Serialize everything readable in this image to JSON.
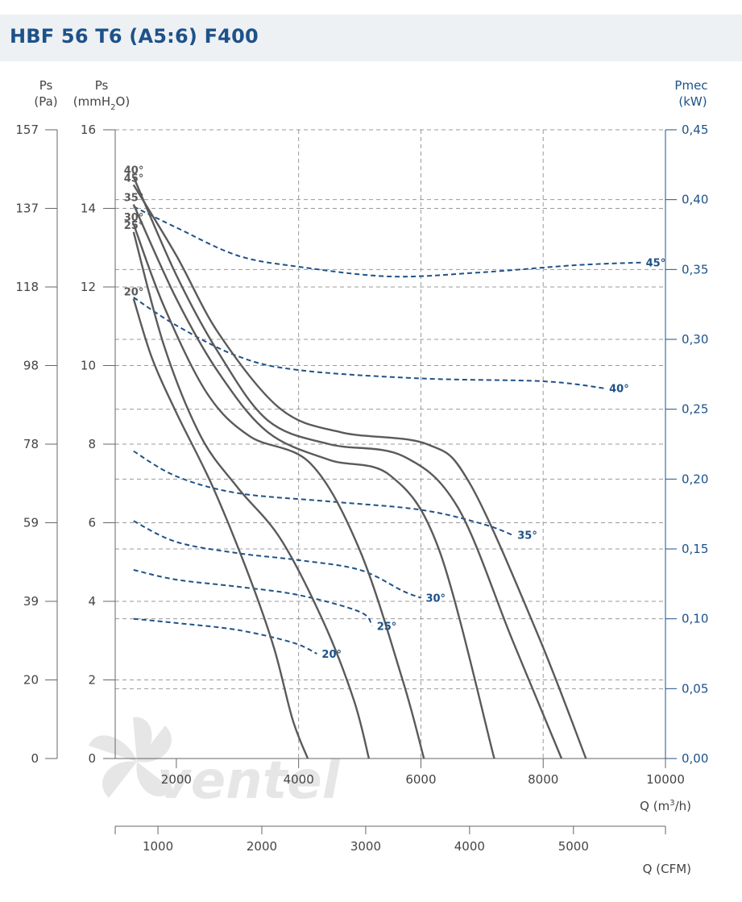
{
  "header": {
    "title": "HBF 56 T6 (A5:6) F400"
  },
  "watermark": {
    "text": "ventel"
  },
  "chart_data": {
    "type": "line",
    "title": "HBF 56 T6 (A5:6) F400",
    "axes": {
      "left_pa": {
        "label": "Ps",
        "unit": "(Pa)",
        "ticks": [
          "157",
          "137",
          "118",
          "98",
          "78",
          "59",
          "39",
          "20",
          "0"
        ]
      },
      "left_mmh2o": {
        "label": "Ps",
        "unit": "(mmH2O)",
        "unit_parts": [
          "(mmH",
          "2",
          "O)"
        ],
        "ticks": [
          "16",
          "14",
          "12",
          "10",
          "8",
          "6",
          "4",
          "2",
          "0"
        ],
        "ylim": [
          0,
          16
        ]
      },
      "right_kw": {
        "label": "Pmec",
        "unit": "(kW)",
        "ticks": [
          "0,45",
          "0,40",
          "0,35",
          "0,30",
          "0,25",
          "0,20",
          "0,15",
          "0,10",
          "0,05",
          "0,00"
        ],
        "ylim": [
          0,
          0.45
        ]
      },
      "bottom_m3h": {
        "label": "Q (m3/h)",
        "label_parts": [
          "Q (m",
          "3",
          "/h)"
        ],
        "ticks": [
          "2000",
          "4000",
          "6000",
          "8000",
          "10000"
        ],
        "xlim": [
          1000,
          10000
        ]
      },
      "bottom_cfm": {
        "label": "Q (CFM)",
        "ticks": [
          "1000",
          "2000",
          "3000",
          "4000",
          "5000"
        ]
      }
    },
    "grid": true,
    "pressure_series": [
      {
        "name": "20°",
        "points": [
          [
            1300,
            11.7
          ],
          [
            1600,
            10.2
          ],
          [
            2000,
            8.8
          ],
          [
            2600,
            6.9
          ],
          [
            3200,
            4.6
          ],
          [
            3600,
            2.8
          ],
          [
            3900,
            1.0
          ],
          [
            4150,
            0
          ]
        ]
      },
      {
        "name": "25°",
        "points": [
          [
            1300,
            13.4
          ],
          [
            1800,
            10.5
          ],
          [
            2400,
            8.2
          ],
          [
            3000,
            6.9
          ],
          [
            3700,
            5.6
          ],
          [
            4400,
            3.5
          ],
          [
            4900,
            1.5
          ],
          [
            5150,
            0
          ]
        ]
      },
      {
        "name": "30°",
        "points": [
          [
            1300,
            13.6
          ],
          [
            1800,
            11.5
          ],
          [
            2500,
            9.3
          ],
          [
            3200,
            8.2
          ],
          [
            4200,
            7.5
          ],
          [
            5000,
            5.3
          ],
          [
            5700,
            2.0
          ],
          [
            6050,
            0
          ]
        ]
      },
      {
        "name": "35°",
        "points": [
          [
            1300,
            14.1
          ],
          [
            2000,
            11.7
          ],
          [
            2700,
            9.8
          ],
          [
            3500,
            8.3
          ],
          [
            4500,
            7.6
          ],
          [
            5500,
            7.2
          ],
          [
            6300,
            5.3
          ],
          [
            7200,
            0
          ]
        ]
      },
      {
        "name": "40°",
        "points": [
          [
            1300,
            14.8
          ],
          [
            2000,
            12.3
          ],
          [
            2700,
            10.3
          ],
          [
            3500,
            8.6
          ],
          [
            4500,
            8.0
          ],
          [
            5700,
            7.7
          ],
          [
            6600,
            6.4
          ],
          [
            7500,
            3.0
          ],
          [
            8300,
            0
          ]
        ]
      },
      {
        "name": "45°",
        "points": [
          [
            1300,
            14.6
          ],
          [
            2000,
            12.8
          ],
          [
            2700,
            10.8
          ],
          [
            3700,
            8.9
          ],
          [
            4700,
            8.3
          ],
          [
            6100,
            8.0
          ],
          [
            6800,
            7.0
          ],
          [
            7900,
            3.2
          ],
          [
            8700,
            0
          ]
        ]
      }
    ],
    "power_series": [
      {
        "name": "20°",
        "points": [
          [
            1300,
            0.1
          ],
          [
            2000,
            0.097
          ],
          [
            3000,
            0.092
          ],
          [
            3900,
            0.083
          ],
          [
            4300,
            0.075
          ]
        ]
      },
      {
        "name": "25°",
        "points": [
          [
            1300,
            0.135
          ],
          [
            2000,
            0.128
          ],
          [
            3000,
            0.123
          ],
          [
            4000,
            0.117
          ],
          [
            5000,
            0.105
          ],
          [
            5200,
            0.095
          ]
        ]
      },
      {
        "name": "30°",
        "points": [
          [
            1300,
            0.17
          ],
          [
            2000,
            0.155
          ],
          [
            3000,
            0.147
          ],
          [
            4000,
            0.142
          ],
          [
            5000,
            0.135
          ],
          [
            5700,
            0.12
          ],
          [
            6000,
            0.115
          ]
        ]
      },
      {
        "name": "35°",
        "points": [
          [
            1300,
            0.22
          ],
          [
            2000,
            0.202
          ],
          [
            3000,
            0.19
          ],
          [
            4500,
            0.184
          ],
          [
            6000,
            0.178
          ],
          [
            7000,
            0.168
          ],
          [
            7500,
            0.16
          ]
        ]
      },
      {
        "name": "40°",
        "points": [
          [
            1300,
            0.33
          ],
          [
            2000,
            0.31
          ],
          [
            3000,
            0.288
          ],
          [
            4000,
            0.278
          ],
          [
            6000,
            0.272
          ],
          [
            8000,
            0.27
          ],
          [
            9000,
            0.265
          ]
        ]
      },
      {
        "name": "45°",
        "points": [
          [
            1300,
            0.395
          ],
          [
            2000,
            0.38
          ],
          [
            3000,
            0.36
          ],
          [
            4000,
            0.352
          ],
          [
            5500,
            0.345
          ],
          [
            7000,
            0.348
          ],
          [
            8500,
            0.353
          ],
          [
            9600,
            0.355
          ]
        ]
      }
    ],
    "colors": {
      "pressure": "#5a5a5a",
      "power": "#1d5289",
      "grid": "#999999",
      "axis_right": "#1d5289",
      "title": "#1d5289"
    }
  }
}
